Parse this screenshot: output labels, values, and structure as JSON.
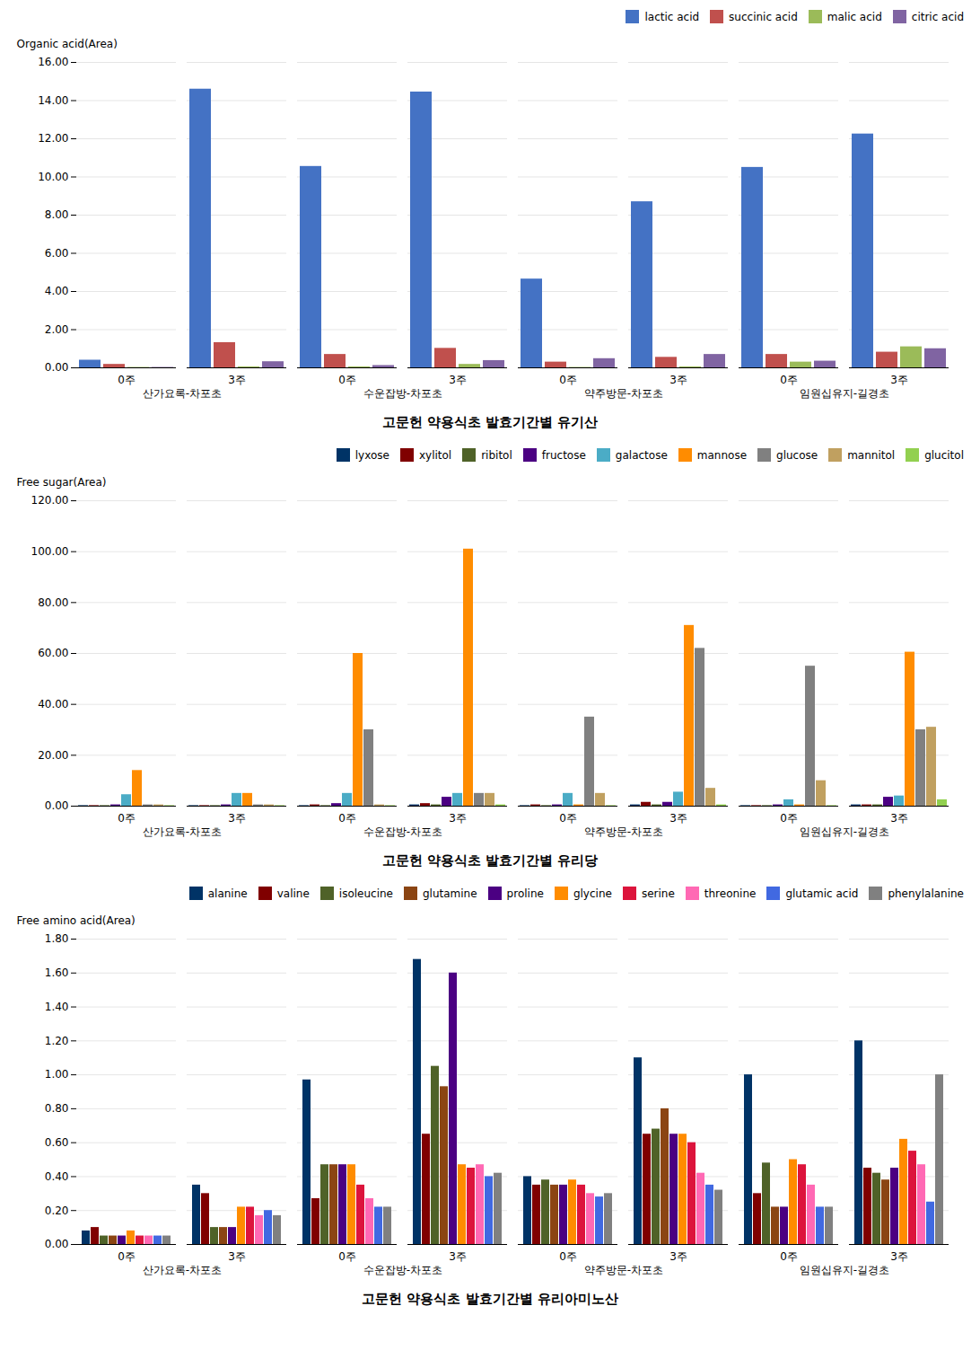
{
  "chart_data": [
    {
      "type": "bar",
      "title": "고문헌 약용식초 발효기간별 유기산",
      "ylabel": "Organic acid(Area)",
      "categories": [
        "0주",
        "3주",
        "0주",
        "3주",
        "0주",
        "3주",
        "0주",
        "3주"
      ],
      "groups": [
        "산가요록-차포초",
        "수운잡방-차포초",
        "약주방문-차포초",
        "임원십유지-길경초"
      ],
      "series": [
        {
          "name": "lactic acid",
          "color": "#4472C4",
          "values": [
            0.4,
            14.6,
            10.55,
            14.45,
            4.65,
            8.7,
            10.5,
            12.25
          ]
        },
        {
          "name": "succinic acid",
          "color": "#C0504D",
          "values": [
            0.18,
            1.32,
            0.7,
            1.02,
            0.3,
            0.55,
            0.7,
            0.82
          ]
        },
        {
          "name": "malic acid",
          "color": "#9BBB59",
          "values": [
            0.02,
            0.05,
            0.05,
            0.18,
            0.02,
            0.05,
            0.3,
            1.1
          ]
        },
        {
          "name": "citric acid",
          "color": "#8064A2",
          "values": [
            0.02,
            0.32,
            0.12,
            0.38,
            0.48,
            0.7,
            0.35,
            1.0
          ]
        }
      ],
      "ylim": [
        0,
        16.0
      ],
      "yticks": [
        {
          "value": 0.0,
          "label": "0.00"
        },
        {
          "value": 2.0,
          "label": "2.00"
        },
        {
          "value": 4.0,
          "label": "4.00"
        },
        {
          "value": 6.0,
          "label": "6.00"
        },
        {
          "value": 8.0,
          "label": "8.00"
        },
        {
          "value": 10.0,
          "label": "10.00"
        },
        {
          "value": 12.0,
          "label": "12.00"
        },
        {
          "value": 14.0,
          "label": "14.00"
        },
        {
          "value": 16.0,
          "label": "16.00"
        }
      ],
      "grid": true,
      "legend": "upper right"
    },
    {
      "type": "bar",
      "title": "고문헌 약용식초 발효기간별 유리당",
      "ylabel": "Free sugar(Area)",
      "categories": [
        "0주",
        "3주",
        "0주",
        "3주",
        "0주",
        "3주",
        "0주",
        "3주"
      ],
      "groups": [
        "산가요록-차포초",
        "수운잡방-차포초",
        "약주방문-차포초",
        "임원십유지-길경초"
      ],
      "series": [
        {
          "name": "lyxose",
          "color": "#003366",
          "values": [
            0.2,
            0.2,
            0.2,
            0.5,
            0.2,
            0.5,
            0.2,
            0.5
          ]
        },
        {
          "name": "xylitol",
          "color": "#800000",
          "values": [
            0.2,
            0.2,
            0.5,
            1.0,
            0.5,
            1.5,
            0.2,
            0.5
          ]
        },
        {
          "name": "ribitol",
          "color": "#4F6228",
          "values": [
            0.2,
            0.2,
            0.2,
            0.5,
            0.2,
            0.5,
            0.2,
            0.5
          ]
        },
        {
          "name": "fructose",
          "color": "#4B0082",
          "values": [
            0.5,
            0.5,
            1.0,
            3.5,
            0.5,
            1.5,
            0.5,
            3.5
          ]
        },
        {
          "name": "galactose",
          "color": "#4BACC6",
          "values": [
            4.5,
            5.0,
            5.0,
            5.0,
            5.0,
            5.5,
            2.5,
            4.0
          ]
        },
        {
          "name": "mannose",
          "color": "#FF8C00",
          "values": [
            14.0,
            5.0,
            60.0,
            101.0,
            0.5,
            71.0,
            0.5,
            60.5
          ]
        },
        {
          "name": "glucose",
          "color": "#808080",
          "values": [
            0.5,
            0.5,
            30.0,
            5.0,
            35.0,
            62.0,
            55.0,
            30.0
          ]
        },
        {
          "name": "mannitol",
          "color": "#C0A060",
          "values": [
            0.5,
            0.5,
            0.5,
            5.0,
            5.0,
            7.0,
            10.0,
            31.0
          ]
        },
        {
          "name": "glucitol",
          "color": "#92D050",
          "values": [
            0.2,
            0.2,
            0.2,
            0.5,
            0.2,
            0.5,
            0.2,
            2.5
          ]
        }
      ],
      "ylim": [
        0,
        120.0
      ],
      "yticks": [
        {
          "value": 0.0,
          "label": "0.00"
        },
        {
          "value": 20.0,
          "label": "20.00"
        },
        {
          "value": 40.0,
          "label": "40.00"
        },
        {
          "value": 60.0,
          "label": "60.00"
        },
        {
          "value": 80.0,
          "label": "80.00"
        },
        {
          "value": 100.0,
          "label": "100.00"
        },
        {
          "value": 120.0,
          "label": "120.00"
        }
      ],
      "grid": true,
      "legend": "upper right"
    },
    {
      "type": "bar",
      "title": "고문헌 약용식초 발효기간별 유리아미노산",
      "ylabel": "Free amino acid(Area)",
      "categories": [
        "0주",
        "3주",
        "0주",
        "3주",
        "0주",
        "3주",
        "0주",
        "3주"
      ],
      "groups": [
        "산가요록-차포초",
        "수운잡방-차포초",
        "약주방문-차포초",
        "임원십유지-길경초"
      ],
      "series": [
        {
          "name": "alanine",
          "color": "#003366",
          "values": [
            0.08,
            0.35,
            0.97,
            1.68,
            0.4,
            1.1,
            1.0,
            1.2
          ]
        },
        {
          "name": "valine",
          "color": "#800000",
          "values": [
            0.1,
            0.3,
            0.27,
            0.65,
            0.35,
            0.65,
            0.3,
            0.45
          ]
        },
        {
          "name": "isoleucine",
          "color": "#4F6228",
          "values": [
            0.05,
            0.1,
            0.47,
            1.05,
            0.38,
            0.68,
            0.48,
            0.42
          ]
        },
        {
          "name": "glutamine",
          "color": "#8B4513",
          "values": [
            0.05,
            0.1,
            0.47,
            0.93,
            0.35,
            0.8,
            0.22,
            0.38
          ]
        },
        {
          "name": "proline",
          "color": "#4B0082",
          "values": [
            0.05,
            0.1,
            0.47,
            1.6,
            0.35,
            0.65,
            0.22,
            0.45
          ]
        },
        {
          "name": "glycine",
          "color": "#FF8C00",
          "values": [
            0.08,
            0.22,
            0.47,
            0.47,
            0.38,
            0.65,
            0.5,
            0.62
          ]
        },
        {
          "name": "serine",
          "color": "#DC143C",
          "values": [
            0.05,
            0.22,
            0.35,
            0.45,
            0.35,
            0.6,
            0.47,
            0.55
          ]
        },
        {
          "name": "threonine",
          "color": "#FF69B4",
          "values": [
            0.05,
            0.17,
            0.27,
            0.47,
            0.3,
            0.42,
            0.35,
            0.47
          ]
        },
        {
          "name": "glutamic acid",
          "color": "#4169E1",
          "values": [
            0.05,
            0.2,
            0.22,
            0.4,
            0.28,
            0.35,
            0.22,
            0.25
          ]
        },
        {
          "name": "phenylalanine",
          "color": "#808080",
          "values": [
            0.05,
            0.17,
            0.22,
            0.42,
            0.3,
            0.32,
            0.22,
            1.0
          ]
        }
      ],
      "ylim": [
        0,
        1.8
      ],
      "yticks": [
        {
          "value": 0.0,
          "label": "0.00"
        },
        {
          "value": 0.2,
          "label": "0.20"
        },
        {
          "value": 0.4,
          "label": "0.40"
        },
        {
          "value": 0.6,
          "label": "0.60"
        },
        {
          "value": 0.8,
          "label": "0.80"
        },
        {
          "value": 1.0,
          "label": "1.00"
        },
        {
          "value": 1.2,
          "label": "1.20"
        },
        {
          "value": 1.4,
          "label": "1.40"
        },
        {
          "value": 1.6,
          "label": "1.60"
        },
        {
          "value": 1.8,
          "label": "1.80"
        }
      ],
      "grid": true,
      "legend": "upper right"
    }
  ]
}
